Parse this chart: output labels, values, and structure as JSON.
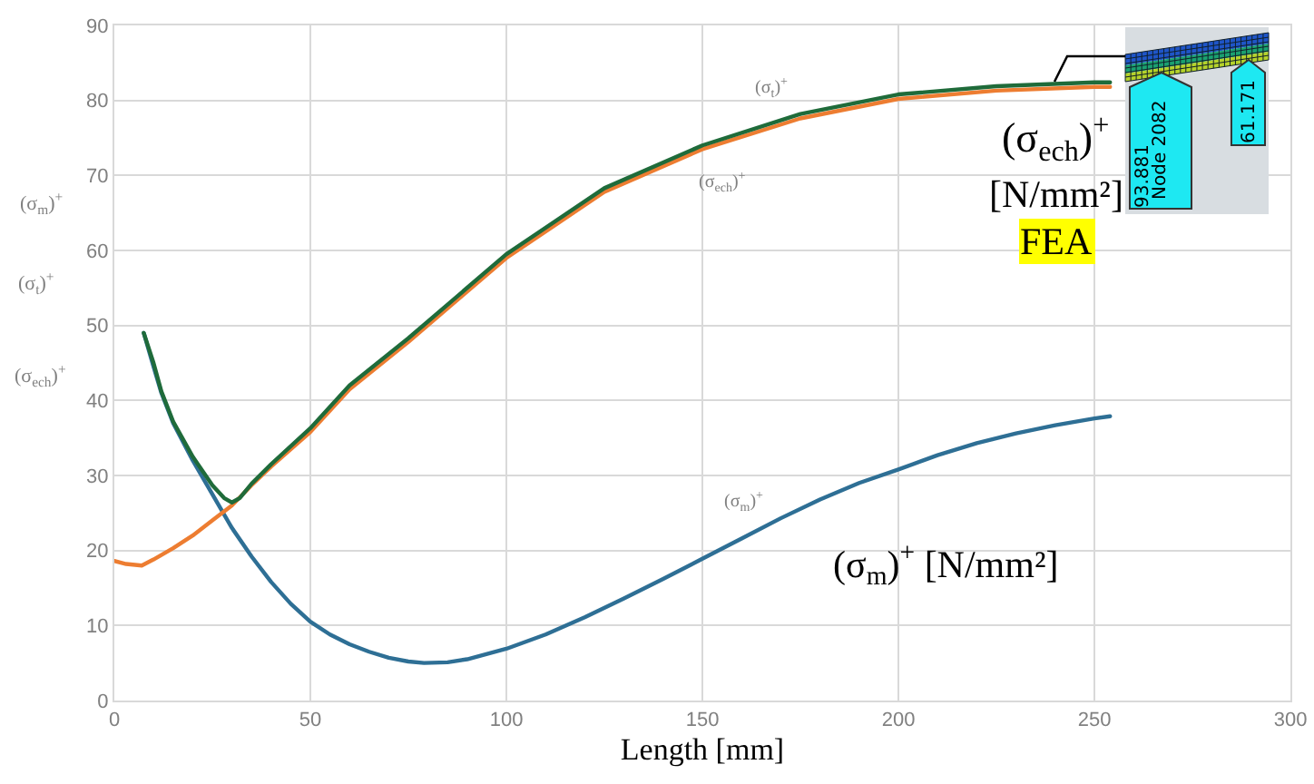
{
  "chart_data": {
    "type": "line",
    "xlabel": "Length [mm]",
    "xlim": [
      0,
      300
    ],
    "xticks": [
      0,
      50,
      100,
      150,
      200,
      250,
      300
    ],
    "ylim": [
      0,
      90
    ],
    "yticks": [
      0,
      10,
      20,
      30,
      40,
      50,
      60,
      70,
      80,
      90
    ],
    "grid": true,
    "series": [
      {
        "color": "#2e6f95",
        "x": [
          7.5,
          10,
          12,
          15,
          20,
          25,
          30,
          35,
          40,
          45,
          50,
          55,
          60,
          65,
          70,
          75,
          79,
          85,
          90,
          100,
          110,
          120,
          130,
          140,
          150,
          160,
          170,
          180,
          190,
          200,
          210,
          220,
          230,
          240,
          250,
          254
        ],
        "values": [
          49,
          44.5,
          41,
          37,
          32,
          27.5,
          23,
          19.2,
          15.8,
          12.9,
          10.5,
          8.8,
          7.5,
          6.5,
          5.7,
          5.2,
          5.0,
          5.1,
          5.5,
          6.9,
          8.8,
          11.1,
          13.6,
          16.2,
          18.9,
          21.6,
          24.3,
          26.8,
          29,
          30.8,
          32.7,
          34.3,
          35.6,
          36.7,
          37.6,
          37.9
        ]
      },
      {
        "color": "#ed7d31",
        "x": [
          0,
          3,
          7,
          10,
          15,
          20,
          25,
          30,
          35,
          40,
          50,
          60,
          75,
          100,
          125,
          150,
          175,
          200,
          225,
          250,
          254
        ],
        "values": [
          18.6,
          18.2,
          18.0,
          18.8,
          20.3,
          22.0,
          24.0,
          26.0,
          28.7,
          31.2,
          35.8,
          41.5,
          47.8,
          59.0,
          67.8,
          73.5,
          77.6,
          80.2,
          81.3,
          81.8,
          81.8
        ]
      },
      {
        "color": "#1f6b3a",
        "x": [
          7.5,
          10,
          12,
          15,
          20,
          25,
          28,
          30,
          32,
          35,
          40,
          50,
          60,
          75,
          100,
          125,
          150,
          175,
          200,
          225,
          250,
          254
        ],
        "values": [
          49,
          45,
          41.2,
          37.2,
          32.5,
          28.7,
          27.0,
          26.4,
          27.0,
          28.9,
          31.5,
          36.3,
          42,
          48.3,
          59.5,
          68.3,
          74.0,
          78.2,
          80.8,
          81.9,
          82.4,
          82.4
        ]
      }
    ],
    "annotations": [
      "(σ$_{m}$)$^{+}$",
      "(σ$_{t}$)$^{+}$",
      "(σ$_{ech}$)$^{+}$",
      "(σ$_{t}$)$^{+}$",
      "(σ$_{ech}$)$^{+}$",
      "(σ$_{m}$)$^{+}$",
      "(σ$_{m}$)$^{+}$ [N/mm²]",
      "(σ$_{ech}$)$^{+}$",
      "[N/mm²]",
      "FEA",
      "93.881",
      "Node 2082",
      "61.171"
    ]
  }
}
